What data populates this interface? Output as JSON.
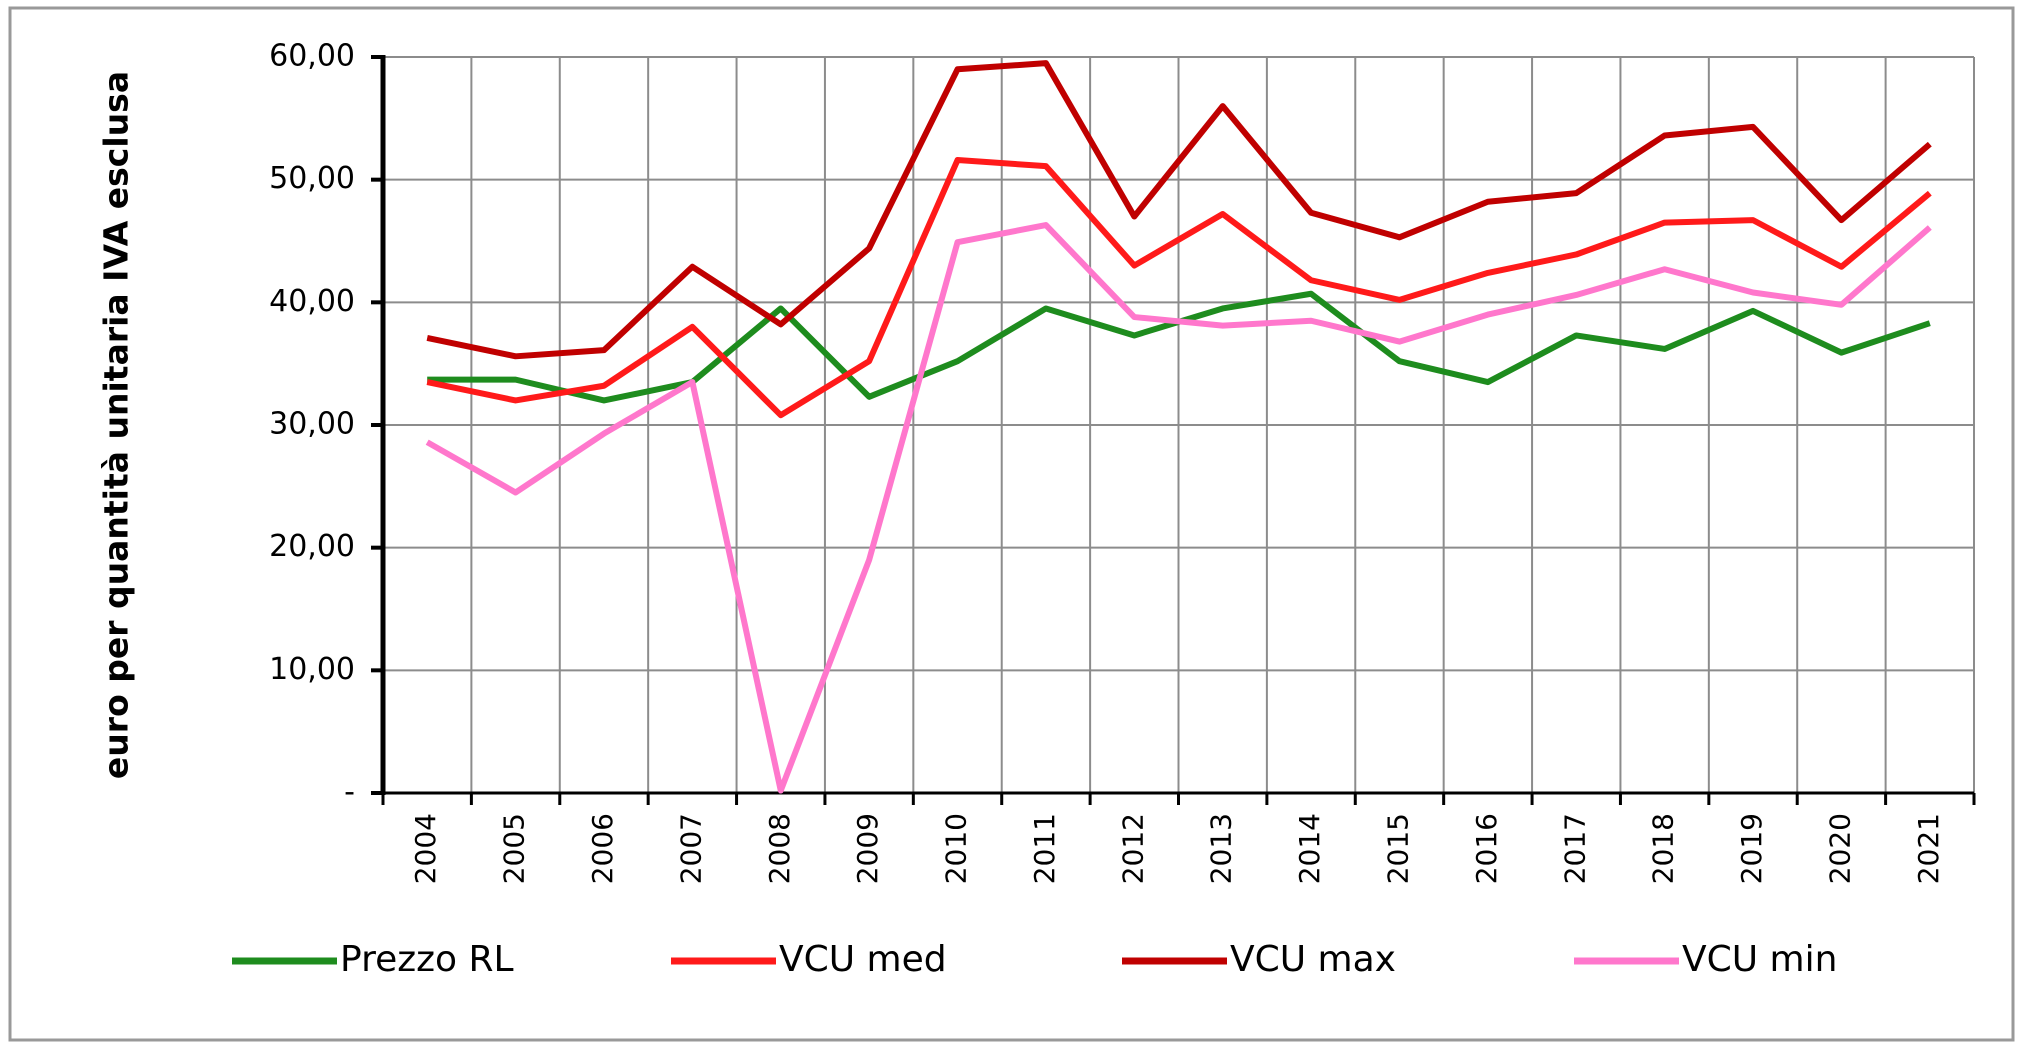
{
  "chart_data": {
    "type": "line",
    "y_label": "euro per quantità unitaria  IVA esclusa",
    "categories": [
      "2004",
      "2005",
      "2006",
      "2007",
      "2008",
      "2009",
      "2010",
      "2011",
      "2012",
      "2013",
      "2014",
      "2015",
      "2016",
      "2017",
      "2018",
      "2019",
      "2020",
      "2021"
    ],
    "series": [
      {
        "name": "Prezzo RL",
        "color": "#1e8c1e",
        "values": [
          33.7,
          33.7,
          32.0,
          33.5,
          39.5,
          32.3,
          35.2,
          39.5,
          37.3,
          39.5,
          40.7,
          35.2,
          33.5,
          37.3,
          36.2,
          39.3,
          35.9,
          38.3
        ]
      },
      {
        "name": "VCU med",
        "color": "#ff1a1a",
        "values": [
          33.5,
          32.0,
          33.2,
          38.0,
          30.8,
          35.2,
          51.6,
          51.1,
          43.0,
          47.2,
          41.8,
          40.2,
          42.4,
          43.9,
          46.5,
          46.7,
          42.9,
          48.9
        ]
      },
      {
        "name": "VCU max",
        "color": "#c00000",
        "values": [
          37.1,
          35.6,
          36.1,
          42.9,
          38.2,
          44.4,
          59.0,
          59.5,
          47.0,
          56.0,
          47.3,
          45.3,
          48.2,
          48.9,
          53.6,
          54.3,
          46.7,
          52.9
        ]
      },
      {
        "name": "VCU min",
        "color": "#ff77cc",
        "values": [
          28.6,
          24.5,
          29.3,
          33.5,
          0.2,
          19.0,
          44.9,
          46.3,
          38.8,
          38.1,
          38.5,
          36.8,
          39.0,
          40.6,
          42.7,
          40.8,
          39.8,
          46.1
        ]
      }
    ],
    "ylim": [
      0,
      60
    ],
    "yticks": [
      {
        "value": 0,
        "label": "-"
      },
      {
        "value": 10,
        "label": "10,00"
      },
      {
        "value": 20,
        "label": "20,00"
      },
      {
        "value": 30,
        "label": "30,00"
      },
      {
        "value": 40,
        "label": "40,00"
      },
      {
        "value": 50,
        "label": "50,00"
      },
      {
        "value": 60,
        "label": "60,00"
      }
    ],
    "grid": true,
    "legend": "bottom"
  }
}
